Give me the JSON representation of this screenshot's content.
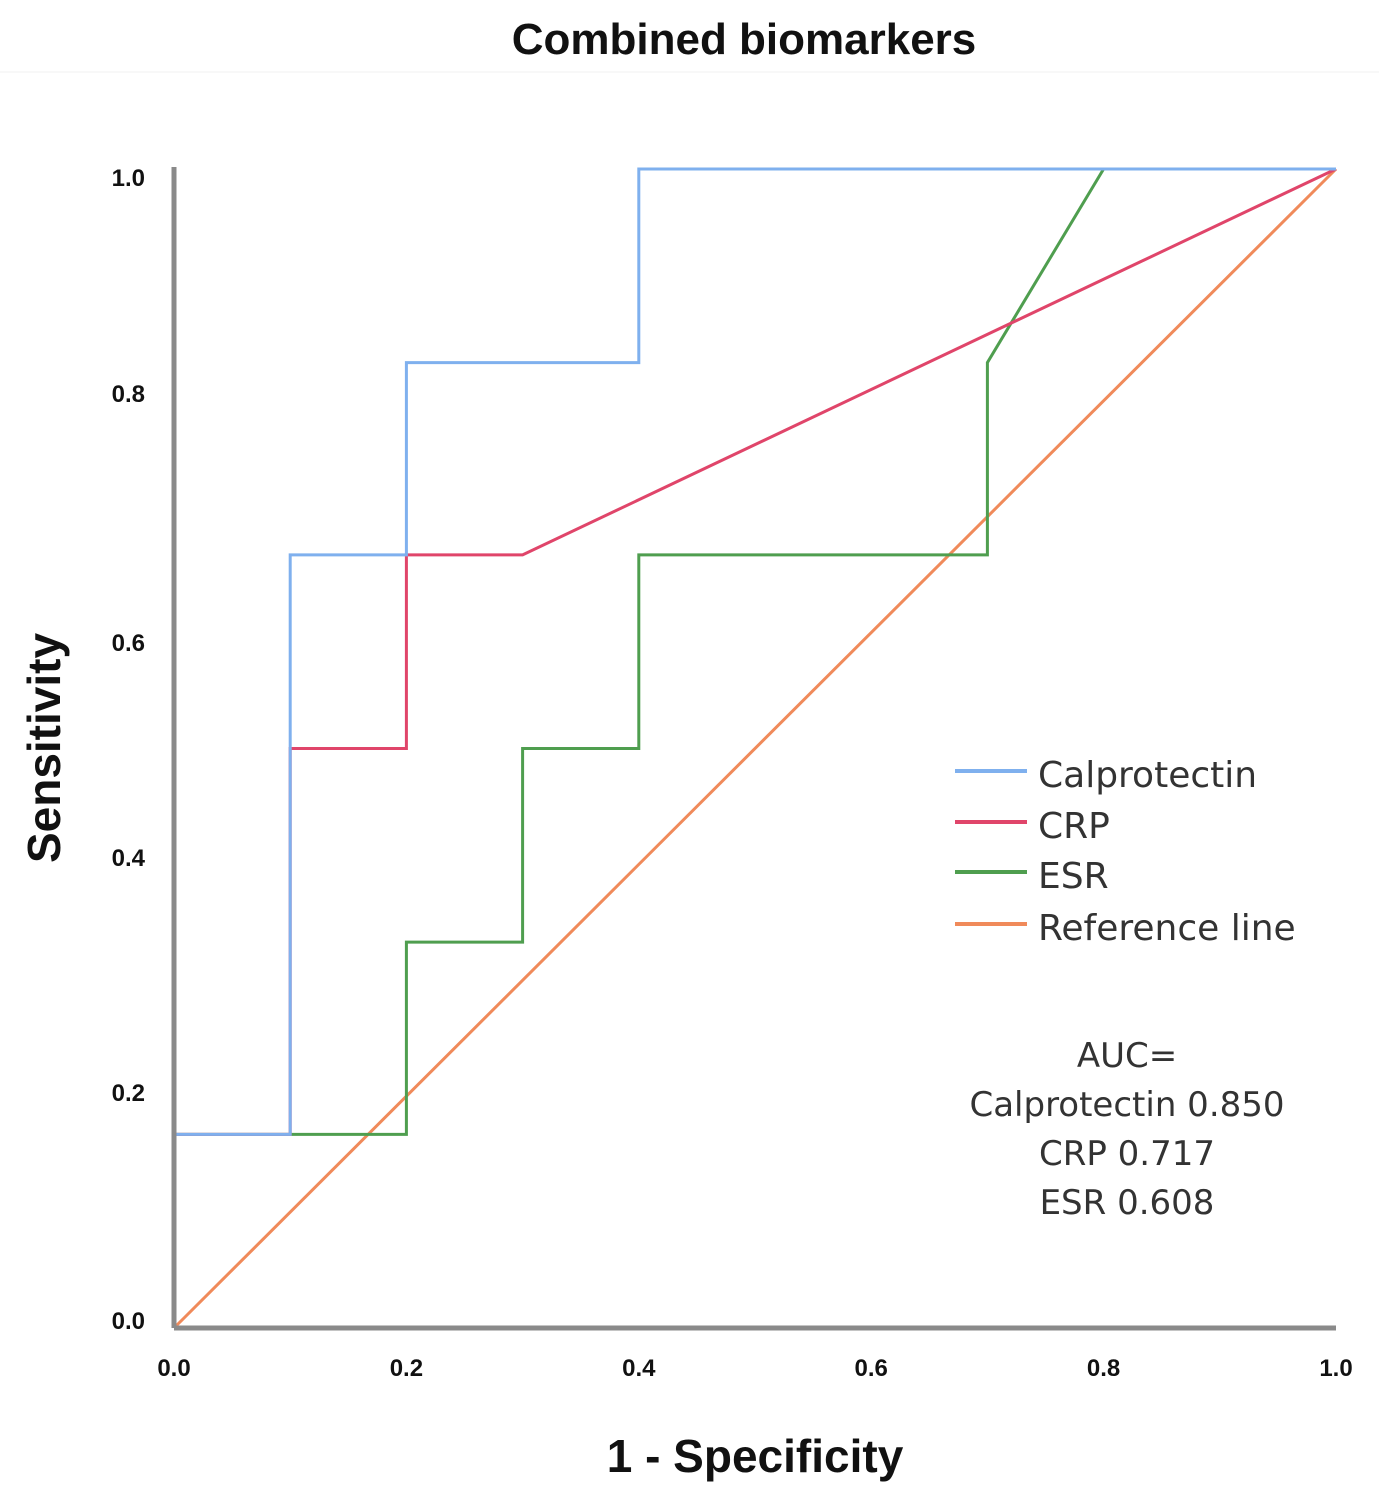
{
  "chart_data": {
    "type": "line",
    "title": "Combined biomarkers",
    "xlabel": "1 - Specificity",
    "ylabel": "Sensitivity",
    "xlim": [
      0,
      1
    ],
    "ylim": [
      0,
      1
    ],
    "x_ticks": [
      "0.0",
      "0.2",
      "0.4",
      "0.6",
      "0.8",
      "1.0"
    ],
    "y_ticks": [
      "0.0",
      "0.2",
      "0.4",
      "0.6",
      "0.8",
      "1.0"
    ],
    "grid": false,
    "legend_position": "right",
    "series": [
      {
        "name": "Calprotectin",
        "color": "#7fb0ee",
        "points": [
          [
            0,
            0
          ],
          [
            0,
            0.167
          ],
          [
            0.1,
            0.167
          ],
          [
            0.1,
            0.667
          ],
          [
            0.2,
            0.667
          ],
          [
            0.2,
            0.833
          ],
          [
            0.4,
            0.833
          ],
          [
            0.4,
            1.0
          ],
          [
            1.0,
            1.0
          ]
        ]
      },
      {
        "name": "CRP",
        "color": "#e0456a",
        "points": [
          [
            0,
            0
          ],
          [
            0,
            0.167
          ],
          [
            0.1,
            0.167
          ],
          [
            0.1,
            0.5
          ],
          [
            0.2,
            0.5
          ],
          [
            0.2,
            0.667
          ],
          [
            0.3,
            0.667
          ],
          [
            1.0,
            1.0
          ]
        ]
      },
      {
        "name": "ESR",
        "color": "#4f9e4f",
        "points": [
          [
            0,
            0
          ],
          [
            0,
            0.167
          ],
          [
            0.2,
            0.167
          ],
          [
            0.2,
            0.333
          ],
          [
            0.3,
            0.333
          ],
          [
            0.3,
            0.5
          ],
          [
            0.4,
            0.5
          ],
          [
            0.4,
            0.667
          ],
          [
            0.7,
            0.667
          ],
          [
            0.7,
            0.833
          ],
          [
            0.8,
            1.0
          ],
          [
            1.0,
            1.0
          ]
        ]
      },
      {
        "name": "Reference line",
        "color": "#f08a5a",
        "points": [
          [
            0,
            0
          ],
          [
            1.0,
            1.0
          ]
        ]
      }
    ],
    "annotations": {
      "auc_header": "AUC=",
      "auc_lines": [
        "Calprotectin 0.850",
        "CRP 0.717",
        "ESR 0.608"
      ]
    }
  }
}
